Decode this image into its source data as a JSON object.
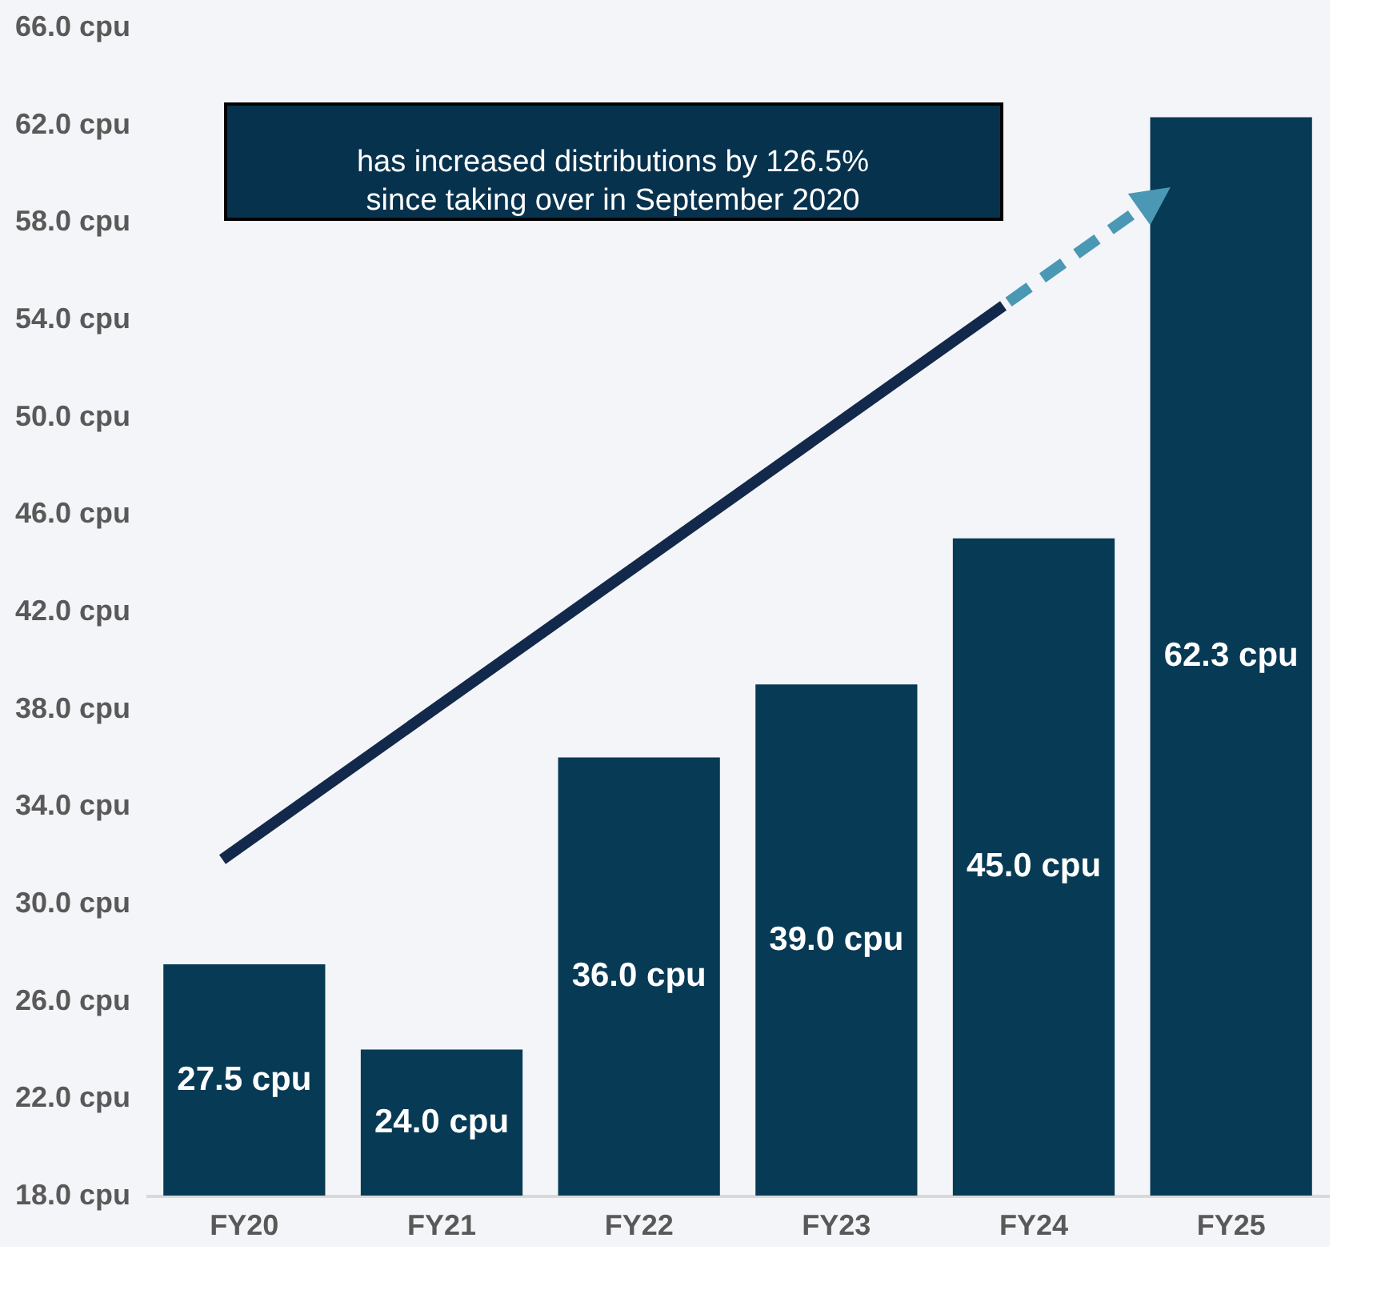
{
  "chart_data": {
    "type": "bar",
    "categories": [
      "FY20",
      "FY21",
      "FY22",
      "FY23",
      "FY24",
      "FY25"
    ],
    "values": [
      27.5,
      24.0,
      36.0,
      39.0,
      45.0,
      62.3
    ],
    "value_labels": [
      "27.5 cpu",
      "24.0 cpu",
      "36.0 cpu",
      "39.0 cpu",
      "45.0 cpu",
      "62.3 cpu"
    ],
    "color": "#073a55",
    "ylim": [
      18,
      66
    ],
    "yticks": [
      {
        "value": 18,
        "label": "18.0 cpu"
      },
      {
        "value": 22,
        "label": "22.0 cpu"
      },
      {
        "value": 26,
        "label": "26.0 cpu"
      },
      {
        "value": 30,
        "label": "30.0 cpu"
      },
      {
        "value": 34,
        "label": "34.0 cpu"
      },
      {
        "value": 38,
        "label": "38.0 cpu"
      },
      {
        "value": 42,
        "label": "42.0 cpu"
      },
      {
        "value": 46,
        "label": "46.0 cpu"
      },
      {
        "value": 50,
        "label": "50.0 cpu"
      },
      {
        "value": 54,
        "label": "54.0 cpu"
      },
      {
        "value": 58,
        "label": "58.0 cpu"
      },
      {
        "value": 62,
        "label": "62.0 cpu"
      },
      {
        "value": 66,
        "label": "66.0 cpu"
      }
    ],
    "annotations": [
      "has increased distributions by 126.5%\nsince taking over in September 2020"
    ],
    "grid": false
  }
}
